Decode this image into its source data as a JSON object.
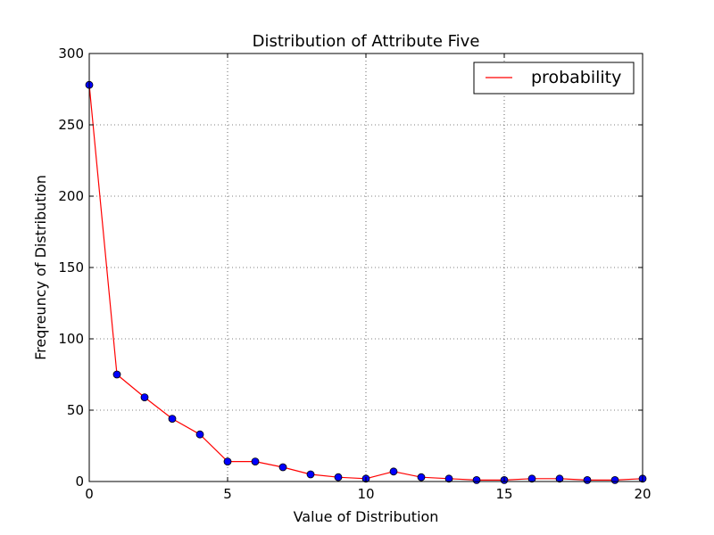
{
  "chart_data": {
    "type": "line",
    "title": "Distribution of Attribute Five",
    "xlabel": "Value of Distribution",
    "ylabel": "Freqreuncy of Distribution",
    "xlim": [
      0,
      20
    ],
    "ylim": [
      0,
      300
    ],
    "xticks": [
      0,
      5,
      10,
      15,
      20
    ],
    "yticks": [
      0,
      50,
      100,
      150,
      200,
      250,
      300
    ],
    "grid": true,
    "legend_position": "top-right",
    "series": [
      {
        "name": "probability",
        "color": "#ff0000",
        "marker_color": "#0000ff",
        "x": [
          0,
          1,
          2,
          3,
          4,
          5,
          6,
          7,
          8,
          9,
          10,
          11,
          12,
          13,
          14,
          15,
          16,
          17,
          18,
          19,
          20
        ],
        "y": [
          278,
          75,
          59,
          44,
          33,
          14,
          14,
          10,
          5,
          3,
          2,
          7,
          3,
          2,
          1,
          1,
          2,
          2,
          1,
          1,
          2
        ]
      }
    ]
  }
}
